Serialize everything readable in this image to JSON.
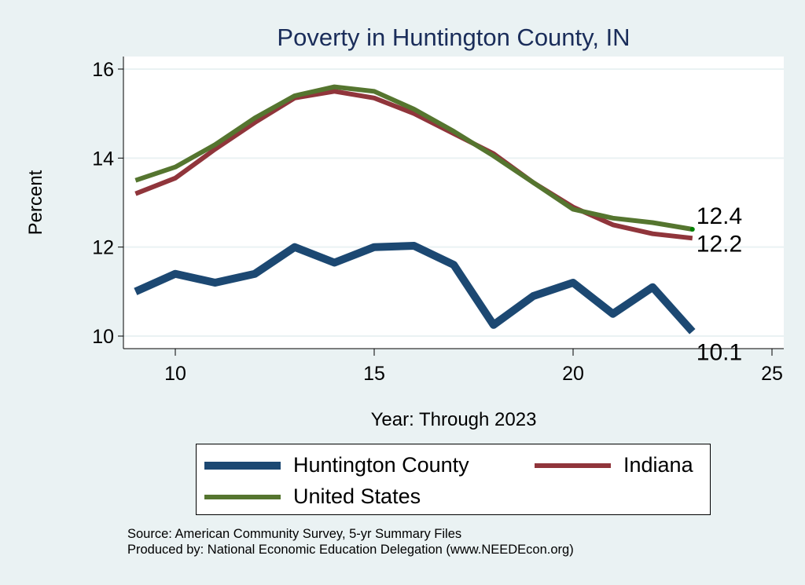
{
  "chart_data": {
    "type": "line",
    "title": "Poverty in Huntington County, IN",
    "xlabel": "Year: Through 2023",
    "ylabel": "Percent",
    "xlim": [
      8.3,
      25.4
    ],
    "ylim": [
      9.7,
      16.3
    ],
    "xticks": [
      10,
      15,
      20,
      25
    ],
    "yticks": [
      10,
      12,
      14,
      16
    ],
    "grid": true,
    "legend_position": "bottom",
    "x": [
      9,
      10,
      11,
      12,
      13,
      14,
      15,
      16,
      17,
      18,
      19,
      20,
      21,
      22,
      23
    ],
    "series": [
      {
        "name": "Huntington County",
        "color": "#1c4872",
        "values": [
          11.0,
          11.4,
          11.2,
          11.4,
          12.0,
          11.65,
          12.0,
          12.03,
          11.6,
          10.25,
          10.9,
          11.2,
          10.5,
          11.1,
          10.1
        ],
        "end_label": "10.1"
      },
      {
        "name": "Indiana",
        "color": "#90353b",
        "values": [
          13.2,
          13.55,
          14.2,
          14.8,
          15.35,
          15.5,
          15.35,
          15.0,
          14.55,
          14.1,
          13.45,
          12.9,
          12.5,
          12.3,
          12.2
        ],
        "end_label": "12.2"
      },
      {
        "name": "United States",
        "color": "#55752f",
        "values": [
          13.5,
          13.8,
          14.3,
          14.9,
          15.4,
          15.6,
          15.5,
          15.1,
          14.6,
          14.05,
          13.45,
          12.85,
          12.65,
          12.55,
          12.4
        ],
        "end_label": "12.4"
      }
    ]
  },
  "legend": {
    "items": [
      {
        "label": "Huntington County",
        "color": "#1c4872"
      },
      {
        "label": "Indiana",
        "color": "#90353b"
      },
      {
        "label": "United States",
        "color": "#55752f"
      }
    ]
  },
  "footer": {
    "source": "Source: American Community Survey, 5-yr Summary Files",
    "produced": "Produced by: National Economic Education Delegation (www.NEEDEcon.org)"
  }
}
